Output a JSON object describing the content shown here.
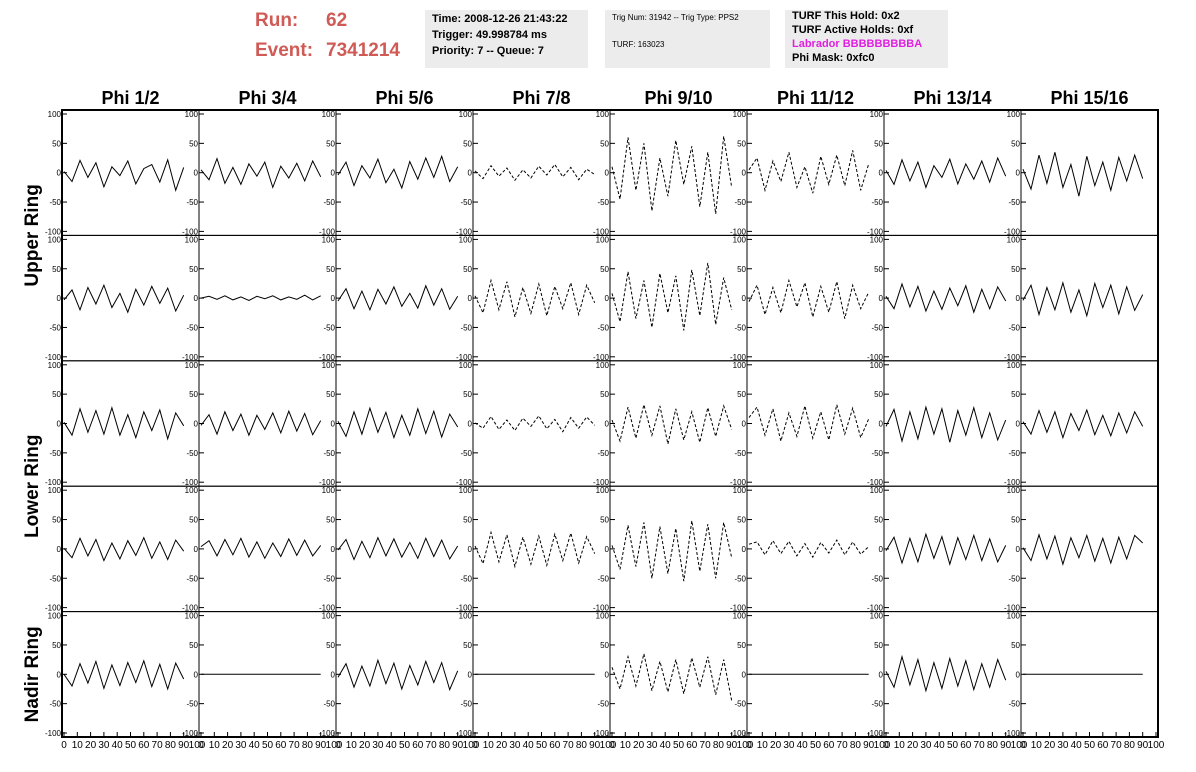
{
  "header": {
    "run_label": "Run:",
    "run": "62",
    "event_label": "Event:",
    "event": "7341214",
    "time": "Time: 2008-12-26 21:43:22",
    "trigger": "Trigger: 49.998784 ms",
    "priority": "Priority: 7 -- Queue: 7",
    "trig_num": "Trig Num: 31942 -- Trig Type: PPS2",
    "turf": "TURF: 163023",
    "turf_this_hold": "TURF This Hold: 0x2",
    "turf_active_holds": "TURF Active Holds: 0xf",
    "labrador": "Labrador BBBBBBBBBA",
    "phi_mask": "Phi Mask: 0xfc0"
  },
  "chart_data": {
    "type": "line",
    "columns": [
      "Phi 1/2",
      "Phi 3/4",
      "Phi 5/6",
      "Phi 7/8",
      "Phi 9/10",
      "Phi 11/12",
      "Phi 13/14",
      "Phi 15/16"
    ],
    "row_labels": [
      "Upper Ring",
      "Lower Ring",
      "Nadir Ring"
    ],
    "xlim": [
      0,
      100
    ],
    "ylim": [
      -100,
      100
    ],
    "xticks": [
      0,
      10,
      20,
      30,
      40,
      50,
      60,
      70,
      80,
      90,
      100
    ],
    "yticks": [
      -100,
      -50,
      0,
      50,
      100
    ],
    "color": "#000000",
    "x": [
      0,
      6,
      12,
      18,
      24,
      30,
      36,
      42,
      48,
      54,
      60,
      66,
      72,
      78,
      84,
      90
    ],
    "panels": [
      [
        {
          "dashed": false,
          "values": [
            2,
            -15,
            21,
            -8,
            17,
            -24,
            10,
            -5,
            20,
            -19,
            7,
            14,
            -16,
            22,
            -30,
            9
          ]
        },
        {
          "dashed": false,
          "values": [
            5,
            -12,
            24,
            -18,
            9,
            -20,
            15,
            -6,
            18,
            -25,
            11,
            -9,
            16,
            -14,
            20,
            -7
          ]
        },
        {
          "dashed": false,
          "values": [
            -4,
            18,
            -22,
            12,
            -9,
            23,
            -17,
            6,
            -26,
            19,
            -11,
            25,
            -8,
            28,
            -15,
            10
          ]
        },
        {
          "dashed": true,
          "values": [
            3,
            -10,
            12,
            -6,
            8,
            -13,
            5,
            -9,
            11,
            -4,
            14,
            -7,
            9,
            -12,
            6,
            -3
          ]
        },
        {
          "dashed": true,
          "values": [
            10,
            -45,
            60,
            -30,
            50,
            -65,
            25,
            -40,
            55,
            -20,
            45,
            -58,
            35,
            -70,
            62,
            -25
          ]
        },
        {
          "dashed": true,
          "values": [
            5,
            25,
            -30,
            20,
            -15,
            35,
            -25,
            10,
            -35,
            28,
            -20,
            30,
            -22,
            38,
            -30,
            15
          ]
        },
        {
          "dashed": false,
          "values": [
            4,
            -20,
            22,
            -14,
            18,
            -25,
            12,
            -8,
            23,
            -19,
            15,
            -11,
            20,
            -16,
            25,
            -6
          ]
        },
        {
          "dashed": false,
          "values": [
            6,
            -28,
            30,
            -18,
            35,
            -25,
            14,
            -40,
            28,
            -22,
            18,
            -30,
            26,
            -14,
            30,
            -10
          ]
        }
      ],
      [
        {
          "dashed": false,
          "values": [
            -3,
            14,
            -20,
            18,
            -10,
            22,
            -16,
            8,
            -24,
            15,
            -12,
            20,
            -9,
            17,
            -22,
            5
          ]
        },
        {
          "dashed": false,
          "values": [
            0,
            3,
            -2,
            4,
            -3,
            2,
            -4,
            3,
            -1,
            4,
            -3,
            2,
            -2,
            5,
            -3,
            4
          ]
        },
        {
          "dashed": false,
          "values": [
            -5,
            16,
            -18,
            12,
            -20,
            15,
            -10,
            19,
            -14,
            8,
            -17,
            21,
            -12,
            16,
            -19,
            3
          ]
        },
        {
          "dashed": true,
          "values": [
            4,
            -25,
            30,
            -20,
            28,
            -32,
            18,
            -26,
            24,
            -30,
            20,
            -18,
            26,
            -28,
            22,
            -8
          ]
        },
        {
          "dashed": true,
          "values": [
            8,
            -40,
            45,
            -35,
            30,
            -50,
            42,
            -25,
            38,
            -55,
            48,
            -30,
            60,
            -45,
            35,
            -20
          ]
        },
        {
          "dashed": true,
          "values": [
            -6,
            22,
            -28,
            18,
            -25,
            30,
            -15,
            26,
            -32,
            20,
            -24,
            28,
            -35,
            22,
            -18,
            10
          ]
        },
        {
          "dashed": false,
          "values": [
            3,
            -18,
            24,
            -15,
            20,
            -22,
            12,
            -19,
            17,
            -13,
            21,
            -24,
            15,
            -18,
            19,
            -5
          ]
        },
        {
          "dashed": false,
          "values": [
            -4,
            22,
            -28,
            18,
            -20,
            26,
            -24,
            14,
            -30,
            25,
            -16,
            22,
            -27,
            19,
            -21,
            6
          ]
        }
      ],
      [
        {
          "dashed": false,
          "values": [
            2,
            -20,
            25,
            -15,
            22,
            -18,
            27,
            -20,
            15,
            -24,
            20,
            -12,
            23,
            -26,
            18,
            -4
          ]
        },
        {
          "dashed": false,
          "values": [
            -3,
            15,
            -18,
            20,
            -12,
            16,
            -20,
            14,
            -10,
            18,
            -16,
            21,
            -13,
            17,
            -19,
            5
          ]
        },
        {
          "dashed": false,
          "values": [
            4,
            -22,
            20,
            -18,
            26,
            -15,
            19,
            -24,
            14,
            -20,
            25,
            -17,
            21,
            -23,
            16,
            -6
          ]
        },
        {
          "dashed": true,
          "values": [
            1,
            -8,
            12,
            -10,
            6,
            -12,
            9,
            -5,
            13,
            -9,
            7,
            -14,
            10,
            -8,
            11,
            -3
          ]
        },
        {
          "dashed": true,
          "values": [
            6,
            -30,
            28,
            -25,
            32,
            -20,
            30,
            -35,
            25,
            -28,
            20,
            -32,
            27,
            -22,
            30,
            -10
          ]
        },
        {
          "dashed": true,
          "values": [
            10,
            28,
            -20,
            25,
            -30,
            18,
            -22,
            30,
            -25,
            20,
            -28,
            32,
            -18,
            26,
            -24,
            8
          ]
        },
        {
          "dashed": false,
          "values": [
            -5,
            24,
            -30,
            20,
            -26,
            28,
            -18,
            25,
            -32,
            22,
            -20,
            27,
            -24,
            18,
            -28,
            6
          ]
        },
        {
          "dashed": false,
          "values": [
            3,
            -18,
            22,
            -15,
            20,
            -24,
            17,
            -12,
            23,
            -19,
            14,
            -21,
            18,
            -16,
            20,
            -5
          ]
        }
      ],
      [
        {
          "dashed": false,
          "values": [
            1,
            -15,
            18,
            -12,
            16,
            -20,
            10,
            -17,
            14,
            -11,
            19,
            -16,
            12,
            -18,
            15,
            -4
          ]
        },
        {
          "dashed": false,
          "values": [
            4,
            14,
            -12,
            16,
            -10,
            18,
            -14,
            12,
            -16,
            10,
            -13,
            17,
            -11,
            15,
            -12,
            6
          ]
        },
        {
          "dashed": false,
          "values": [
            -2,
            16,
            -18,
            13,
            -15,
            19,
            -12,
            17,
            -14,
            11,
            -16,
            18,
            -13,
            15,
            -17,
            5
          ]
        },
        {
          "dashed": true,
          "values": [
            5,
            -25,
            28,
            -22,
            24,
            -30,
            20,
            -26,
            22,
            -28,
            25,
            -20,
            27,
            -24,
            21,
            -8
          ]
        },
        {
          "dashed": true,
          "values": [
            6,
            -35,
            40,
            -30,
            45,
            -50,
            38,
            -42,
            35,
            -55,
            48,
            -38,
            42,
            -50,
            45,
            -15
          ]
        },
        {
          "dashed": true,
          "values": [
            8,
            12,
            -10,
            14,
            -8,
            13,
            -12,
            9,
            -14,
            11,
            -7,
            15,
            -10,
            12,
            -9,
            4
          ]
        },
        {
          "dashed": false,
          "values": [
            -3,
            20,
            -24,
            18,
            -22,
            25,
            -16,
            21,
            -26,
            19,
            -18,
            23,
            -20,
            17,
            -22,
            6
          ]
        },
        {
          "dashed": false,
          "values": [
            2,
            -20,
            24,
            -17,
            22,
            -26,
            19,
            -15,
            23,
            -21,
            18,
            -24,
            20,
            -17,
            23,
            10
          ]
        }
      ],
      [
        {
          "dashed": false,
          "values": [
            0,
            -20,
            18,
            -15,
            22,
            -24,
            16,
            -19,
            20,
            -14,
            23,
            -21,
            17,
            -25,
            19,
            -8
          ]
        },
        {
          "dashed": false,
          "values": [
            0,
            0,
            0,
            0,
            0,
            0,
            0,
            0,
            0,
            0,
            0,
            0,
            0,
            0,
            0,
            0
          ]
        },
        {
          "dashed": false,
          "values": [
            -5,
            18,
            -22,
            14,
            -20,
            24,
            -16,
            19,
            -25,
            15,
            -18,
            22,
            -14,
            20,
            -26,
            6
          ]
        },
        {
          "dashed": false,
          "values": [
            0,
            0,
            0,
            0,
            0,
            0,
            0,
            0,
            0,
            0,
            0,
            0,
            0,
            0,
            0,
            0
          ]
        },
        {
          "dashed": true,
          "values": [
            12,
            -25,
            30,
            -20,
            35,
            -28,
            22,
            -30,
            25,
            -33,
            28,
            -22,
            30,
            -35,
            25,
            -45
          ]
        },
        {
          "dashed": false,
          "values": [
            0,
            0,
            0,
            0,
            0,
            0,
            0,
            0,
            0,
            0,
            0,
            0,
            0,
            0,
            0,
            0
          ]
        },
        {
          "dashed": false,
          "values": [
            5,
            -22,
            30,
            -18,
            25,
            -28,
            20,
            -24,
            27,
            -20,
            23,
            -26,
            18,
            -22,
            25,
            -10
          ]
        },
        {
          "dashed": false,
          "values": [
            0,
            0,
            0,
            0,
            0,
            0,
            0,
            0,
            0,
            0,
            0,
            0,
            0,
            0,
            0,
            0
          ]
        }
      ]
    ]
  }
}
